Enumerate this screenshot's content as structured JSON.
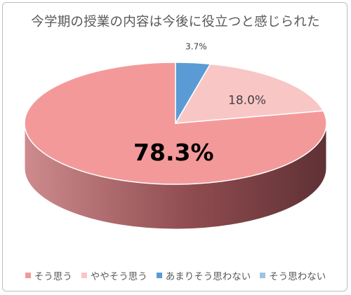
{
  "chart_data": {
    "type": "pie",
    "title": "今学期の授業の内容は今後に役立つと感じられた",
    "categories": [
      "そう思う",
      "ややそう思う",
      "あまりそう思わない",
      "そう思わない"
    ],
    "values": [
      78.3,
      18.0,
      3.7,
      0.0
    ],
    "labels": [
      "78.3%",
      "18.0%",
      "3.7%"
    ],
    "colors": [
      "#f4999a",
      "#f9c6c6",
      "#5b9bd5",
      "#9dc3e6"
    ],
    "side_colors": [
      "#a85b5e",
      "#c58e8f",
      "#3d6f9e",
      "#6f95ba"
    ],
    "legend_position": "bottom",
    "style": "3d"
  }
}
